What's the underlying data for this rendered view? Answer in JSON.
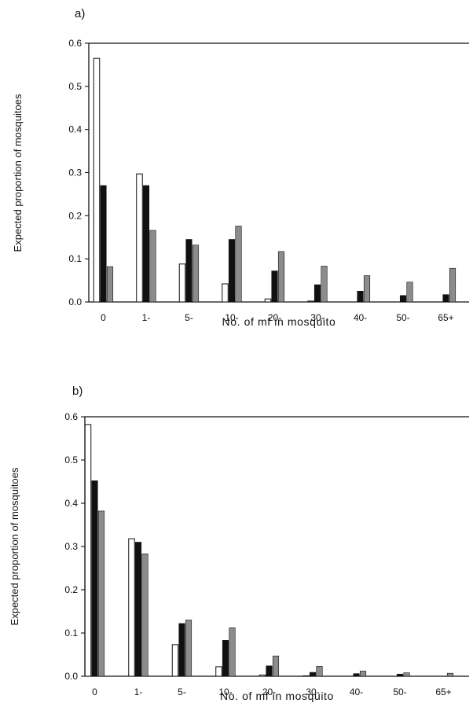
{
  "colors": {
    "series_open": "#ffffff",
    "series_black": "#111111",
    "series_grey": "#8c8c8c",
    "axis": "#111111"
  },
  "chart_data": [
    {
      "type": "bar",
      "panel_label": "a)",
      "categories": [
        "0",
        "1-",
        "5-",
        "10-",
        "20-",
        "30-",
        "40-",
        "50-",
        "65+"
      ],
      "series": [
        {
          "fill": "open",
          "values": [
            0.565,
            0.297,
            0.088,
            0.042,
            0.007,
            0.002,
            0.0,
            0.0,
            0.0
          ]
        },
        {
          "fill": "black",
          "values": [
            0.27,
            0.27,
            0.145,
            0.145,
            0.072,
            0.04,
            0.025,
            0.015,
            0.017
          ]
        },
        {
          "fill": "grey",
          "values": [
            0.082,
            0.166,
            0.132,
            0.176,
            0.117,
            0.083,
            0.061,
            0.046,
            0.078
          ]
        }
      ],
      "xlabel": "No. of mf in mosquito",
      "ylabel": "Expected proportion of mosquitoes",
      "ylim": [
        0,
        0.6
      ],
      "yticks": [
        "0.0",
        "0.1",
        "0.2",
        "0.3",
        "0.4",
        "0.5",
        "0.6"
      ],
      "grid": false,
      "legend": "none"
    },
    {
      "type": "bar",
      "panel_label": "b)",
      "categories": [
        "0",
        "1-",
        "5-",
        "10-",
        "20-",
        "30-",
        "40-",
        "50-",
        "65+"
      ],
      "series": [
        {
          "fill": "open",
          "values": [
            0.582,
            0.318,
            0.073,
            0.022,
            0.003,
            0.001,
            0.0,
            0.0,
            0.0
          ]
        },
        {
          "fill": "black",
          "values": [
            0.452,
            0.31,
            0.122,
            0.083,
            0.024,
            0.009,
            0.006,
            0.005,
            0.0
          ]
        },
        {
          "fill": "grey",
          "values": [
            0.382,
            0.283,
            0.13,
            0.112,
            0.047,
            0.023,
            0.012,
            0.008,
            0.007
          ]
        }
      ],
      "xlabel": "No. of mf in mosquito",
      "ylabel": "Expected proportion of mosquitoes",
      "ylim": [
        0,
        0.6
      ],
      "yticks": [
        "0.0",
        "0.1",
        "0.2",
        "0.3",
        "0.4",
        "0.5",
        "0.6"
      ],
      "grid": false,
      "legend": "none"
    }
  ]
}
